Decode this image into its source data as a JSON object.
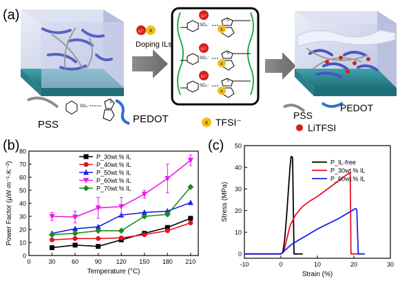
{
  "panels": {
    "a": "(a)",
    "b": "(b)",
    "c": "(c)"
  },
  "schematic": {
    "doping_label": "Doping ILs",
    "li": "Li⁺",
    "x": "X",
    "so3_ion": "SO₃⁻",
    "so3": "SO₃",
    "splus": "S",
    "pss": "PSS",
    "pedot": "PEDOT",
    "tfsi": "TFSI⁻",
    "litfsi": "LiTFSI"
  },
  "colors": {
    "p30": "#000000",
    "p40": "#e8101e",
    "p50": "#1420e6",
    "p60": "#ef14ef",
    "p70": "#1d8b1d",
    "ilfree": "#000000",
    "il30": "#e8101e",
    "il60": "#1420e6",
    "substrate": "#2e8a96",
    "cube": "#c7cde6",
    "pedot_chain": "#2f6fd0",
    "pss_chain": "#8a8a8a",
    "li": "#d42020",
    "tfsi": "#f0c020"
  },
  "chart_data": [
    {
      "type": "line",
      "panel": "b",
      "xlabel": "Temperature (°C)",
      "ylabel": "Power Factor (μW·m⁻¹·K⁻²)",
      "xlim": [
        0,
        220
      ],
      "ylim": [
        0,
        80
      ],
      "xticks": [
        "0",
        "30",
        "60",
        "90",
        "120",
        "150",
        "180",
        "210"
      ],
      "yticks": [
        "0",
        "10",
        "20",
        "30",
        "40",
        "50",
        "60",
        "70",
        "80"
      ],
      "legend_position": "top-left",
      "series": [
        {
          "name": "P_30wt.% IL",
          "color": "#000000",
          "marker": "square",
          "x": [
            30,
            60,
            90,
            120,
            150,
            180,
            210
          ],
          "y": [
            6,
            8,
            7,
            12,
            17,
            21.5,
            28.5
          ],
          "err": [
            0,
            0,
            0,
            0,
            0,
            0,
            0
          ]
        },
        {
          "name": "P_40wt.% IL",
          "color": "#e8101e",
          "marker": "circle",
          "x": [
            30,
            60,
            90,
            120,
            150,
            180,
            210
          ],
          "y": [
            12,
            13,
            13,
            13.5,
            16,
            19,
            25
          ],
          "err": [
            0,
            0,
            0,
            0,
            0,
            0,
            0
          ]
        },
        {
          "name": "P_50wt.% IL",
          "color": "#1420e6",
          "marker": "triangle",
          "x": [
            30,
            60,
            90,
            120,
            150,
            180,
            210
          ],
          "y": [
            17,
            20.5,
            22,
            31,
            33,
            34,
            40.5
          ],
          "err": [
            0,
            0,
            0,
            0,
            0,
            0,
            0
          ]
        },
        {
          "name": "P_60wt.% IL",
          "color": "#ef14ef",
          "marker": "triangle-down",
          "x": [
            30,
            60,
            90,
            120,
            150,
            180,
            210
          ],
          "y": [
            30,
            29.5,
            36.5,
            37.5,
            47,
            59,
            73
          ],
          "err": [
            3,
            4.5,
            8,
            7,
            3,
            11,
            4
          ]
        },
        {
          "name": "P_70wt.% IL",
          "color": "#1d8b1d",
          "marker": "diamond",
          "x": [
            30,
            60,
            90,
            120,
            150,
            180,
            210
          ],
          "y": [
            16,
            17,
            19,
            19,
            30,
            31.5,
            52.5
          ],
          "err": [
            0,
            0,
            0,
            0,
            0,
            0,
            0
          ]
        }
      ]
    },
    {
      "type": "line",
      "panel": "c",
      "xlabel": "Strain (%)",
      "ylabel": "Stress (MPa)",
      "xlim": [
        -10,
        30
      ],
      "ylim": [
        -2,
        50
      ],
      "xticks": [
        "-10",
        "0",
        "10",
        "20",
        "30"
      ],
      "yticks": [
        "0",
        "10",
        "20",
        "30",
        "40",
        "50"
      ],
      "legend_position": "top-right",
      "series": [
        {
          "name": "P_IL-free",
          "color": "#000000",
          "x": [
            -10,
            0,
            0.5,
            1,
            1.5,
            2,
            2.5,
            2.8,
            3.2,
            3.6,
            4,
            6
          ],
          "y": [
            0,
            0,
            0.5,
            6,
            16,
            28,
            40,
            45,
            44.5,
            0,
            0,
            0
          ]
        },
        {
          "name": "P_30wt.% IL",
          "color": "#e8101e",
          "x": [
            -10,
            0,
            0.8,
            1.5,
            2.5,
            4,
            6,
            8,
            10,
            12,
            14,
            16,
            18,
            19,
            19.2,
            19.6,
            22
          ],
          "y": [
            0,
            0,
            1,
            6,
            13,
            18,
            22,
            24.5,
            26.5,
            29,
            31.5,
            34,
            36.5,
            37.5,
            0,
            0,
            0
          ]
        },
        {
          "name": "P_60wt.% IL",
          "color": "#1420e6",
          "x": [
            -10,
            0,
            1,
            2,
            3,
            5,
            7,
            10,
            13,
            16,
            19,
            20.5,
            20.8,
            21.2,
            23
          ],
          "y": [
            0,
            0,
            1.5,
            3,
            4.5,
            6.5,
            8.5,
            11.5,
            14,
            16.5,
            19.5,
            21,
            20.5,
            0,
            0
          ]
        }
      ]
    }
  ]
}
